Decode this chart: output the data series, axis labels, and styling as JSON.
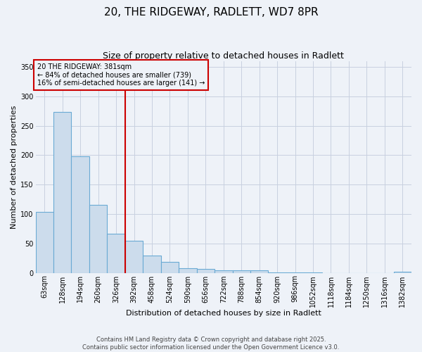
{
  "title_line1": "20, THE RIDGEWAY, RADLETT, WD7 8PR",
  "title_line2": "Size of property relative to detached houses in Radlett",
  "xlabel": "Distribution of detached houses by size in Radlett",
  "ylabel": "Number of detached properties",
  "bar_color": "#ccdcec",
  "bar_edge_color": "#6aaad4",
  "vline_color": "#cc0000",
  "vline_x": 4.5,
  "annotation_text": "20 THE RIDGEWAY: 381sqm\n← 84% of detached houses are smaller (739)\n16% of semi-detached houses are larger (141) →",
  "annotation_box_color": "#cc0000",
  "categories": [
    "63sqm",
    "128sqm",
    "194sqm",
    "260sqm",
    "326sqm",
    "392sqm",
    "458sqm",
    "524sqm",
    "590sqm",
    "656sqm",
    "722sqm",
    "788sqm",
    "854sqm",
    "920sqm",
    "986sqm",
    "1052sqm",
    "1118sqm",
    "1184sqm",
    "1250sqm",
    "1316sqm",
    "1382sqm"
  ],
  "values": [
    103,
    273,
    198,
    115,
    67,
    55,
    29,
    19,
    8,
    7,
    4,
    4,
    4,
    1,
    1,
    1,
    0,
    0,
    0,
    0,
    2
  ],
  "ylim": [
    0,
    360
  ],
  "yticks": [
    0,
    50,
    100,
    150,
    200,
    250,
    300,
    350
  ],
  "footer": "Contains HM Land Registry data © Crown copyright and database right 2025.\nContains public sector information licensed under the Open Government Licence v3.0.",
  "background_color": "#eef2f8",
  "grid_color": "#c8d0e0",
  "title_fontsize": 11,
  "subtitle_fontsize": 9,
  "xlabel_fontsize": 8,
  "ylabel_fontsize": 8,
  "tick_fontsize": 7,
  "annotation_fontsize": 7,
  "footer_fontsize": 6
}
